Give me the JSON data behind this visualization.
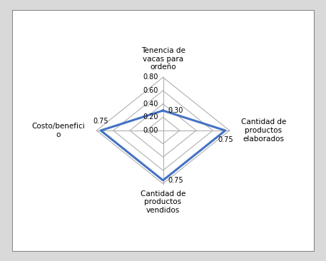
{
  "categories": [
    "Tenencia de\nvacas para\nordeño",
    "Cantidad de\nproductos\nelaborados",
    "Cantidad de\nproductos\nvendidos",
    "Costo/benefici\no"
  ],
  "values": [
    0.3,
    0.75,
    0.75,
    0.75
  ],
  "r_max": 0.8,
  "r_ticks": [
    0.0,
    0.2,
    0.4,
    0.6,
    0.8
  ],
  "r_tick_labels_on_top_axis": [
    "0.00",
    "0.20",
    "0.40",
    "0.60",
    "0.80"
  ],
  "data_label_values": [
    "0.30",
    "0.75",
    "0.75",
    "0.75"
  ],
  "line_color": "#4472C4",
  "line_width": 2.2,
  "fill_color": "#4472C4",
  "fill_alpha": 0.0,
  "grid_color": "#b0b0b0",
  "background_color": "#d9d9d9",
  "box_background": "#ffffff",
  "label_fontsize": 7.5,
  "tick_fontsize": 7.0,
  "fig_width": 4.57,
  "fig_height": 3.66,
  "scale": 0.55
}
